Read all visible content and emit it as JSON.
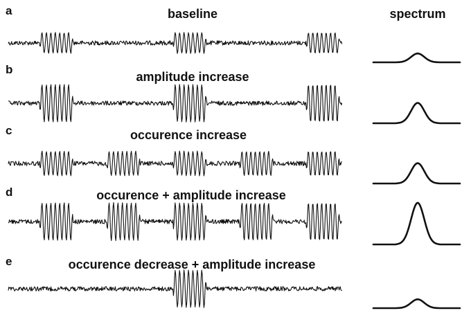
{
  "column_title": "spectrum",
  "panels": [
    {
      "letter": "a",
      "title": "baseline",
      "bursts": [
        {
          "center": 0.144,
          "amplitude": 0.55
        },
        {
          "center": 0.543,
          "amplitude": 0.55
        },
        {
          "center": 0.942,
          "amplitude": 0.55
        }
      ],
      "spectrum_peak": 0.2
    },
    {
      "letter": "b",
      "title": "amplitude increase",
      "bursts": [
        {
          "center": 0.144,
          "amplitude": 1.0
        },
        {
          "center": 0.543,
          "amplitude": 1.0
        },
        {
          "center": 0.942,
          "amplitude": 1.0
        }
      ],
      "spectrum_peak": 0.46
    },
    {
      "letter": "c",
      "title": "occurence increase",
      "bursts": [
        {
          "center": 0.144,
          "amplitude": 0.65
        },
        {
          "center": 0.345,
          "amplitude": 0.65
        },
        {
          "center": 0.543,
          "amplitude": 0.65
        },
        {
          "center": 0.743,
          "amplitude": 0.65
        },
        {
          "center": 0.942,
          "amplitude": 0.65
        }
      ],
      "spectrum_peak": 0.46
    },
    {
      "letter": "d",
      "title": "occurence + amplitude increase",
      "bursts": [
        {
          "center": 0.144,
          "amplitude": 1.0
        },
        {
          "center": 0.345,
          "amplitude": 1.0
        },
        {
          "center": 0.543,
          "amplitude": 1.0
        },
        {
          "center": 0.743,
          "amplitude": 1.0
        },
        {
          "center": 0.942,
          "amplitude": 1.0
        }
      ],
      "spectrum_peak": 0.94
    },
    {
      "letter": "e",
      "title": "occurence decrease + amplitude increase",
      "bursts": [
        {
          "center": 0.543,
          "amplitude": 1.0
        }
      ],
      "spectrum_peak": 0.2
    }
  ]
}
